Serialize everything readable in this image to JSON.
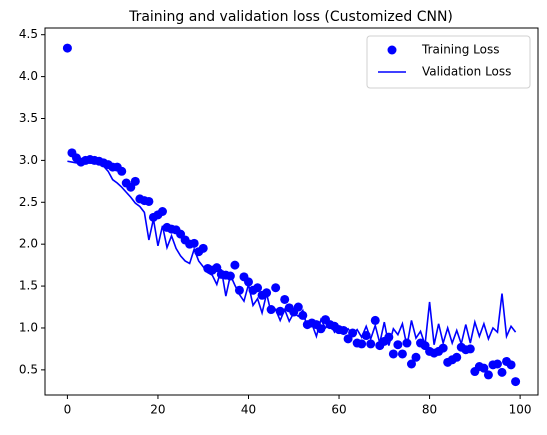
{
  "chart_data": {
    "type": "line",
    "title": "Training and validation loss (Customized CNN)",
    "x": [
      0,
      1,
      2,
      3,
      4,
      5,
      6,
      7,
      8,
      9,
      10,
      11,
      12,
      13,
      14,
      15,
      16,
      17,
      18,
      19,
      20,
      21,
      22,
      23,
      24,
      25,
      26,
      27,
      28,
      29,
      30,
      31,
      32,
      33,
      34,
      35,
      36,
      37,
      38,
      39,
      40,
      41,
      42,
      43,
      44,
      45,
      46,
      47,
      48,
      49,
      50,
      51,
      52,
      53,
      54,
      55,
      56,
      57,
      58,
      59,
      60,
      61,
      62,
      63,
      64,
      65,
      66,
      67,
      68,
      69,
      70,
      71,
      72,
      73,
      74,
      75,
      76,
      77,
      78,
      79,
      80,
      81,
      82,
      83,
      84,
      85,
      86,
      87,
      88,
      89,
      90,
      91,
      92,
      93,
      94,
      95,
      96,
      97,
      98,
      99
    ],
    "series": [
      {
        "name": "Training Loss",
        "color": "#0000ff",
        "style": "marker",
        "values": [
          4.34,
          3.09,
          3.03,
          2.98,
          3.0,
          3.01,
          3.0,
          2.99,
          2.97,
          2.95,
          2.92,
          2.92,
          2.87,
          2.73,
          2.68,
          2.75,
          2.54,
          2.52,
          2.51,
          2.32,
          2.35,
          2.39,
          2.2,
          2.18,
          2.17,
          2.12,
          2.05,
          2.0,
          2.01,
          1.91,
          1.95,
          1.71,
          1.69,
          1.72,
          1.64,
          1.63,
          1.62,
          1.75,
          1.45,
          1.61,
          1.55,
          1.45,
          1.48,
          1.39,
          1.42,
          1.22,
          1.48,
          1.2,
          1.34,
          1.24,
          1.19,
          1.25,
          1.15,
          1.04,
          1.06,
          1.04,
          0.99,
          1.1,
          1.04,
          1.02,
          0.98,
          0.97,
          0.87,
          0.94,
          0.82,
          0.81,
          0.91,
          0.81,
          1.09,
          0.79,
          0.84,
          0.89,
          0.69,
          0.8,
          0.69,
          0.82,
          0.57,
          0.65,
          0.82,
          0.79,
          0.72,
          0.7,
          0.72,
          0.76,
          0.59,
          0.62,
          0.65,
          0.77,
          0.74,
          0.75,
          0.48,
          0.54,
          0.52,
          0.44,
          0.56,
          0.57,
          0.47,
          0.6,
          0.56,
          0.36
        ]
      },
      {
        "name": "Validation Loss",
        "color": "#0000ff",
        "style": "line",
        "values": [
          2.99,
          2.98,
          2.97,
          3.0,
          2.98,
          2.97,
          2.96,
          2.96,
          2.93,
          2.87,
          2.77,
          2.73,
          2.68,
          2.62,
          2.56,
          2.49,
          2.45,
          2.38,
          2.05,
          2.3,
          1.98,
          2.22,
          1.96,
          2.1,
          1.95,
          1.86,
          1.8,
          1.77,
          1.94,
          1.8,
          1.73,
          1.66,
          1.63,
          1.52,
          1.7,
          1.38,
          1.63,
          1.51,
          1.4,
          1.32,
          1.52,
          1.27,
          1.35,
          1.18,
          1.41,
          1.18,
          1.22,
          1.09,
          1.22,
          1.08,
          1.18,
          1.14,
          1.21,
          1.0,
          1.05,
          0.9,
          1.1,
          1.0,
          1.06,
          0.95,
          1.02,
          0.93,
          0.99,
          0.92,
          0.98,
          0.89,
          1.02,
          0.87,
          1.03,
          0.82,
          1.07,
          0.79,
          0.99,
          0.92,
          1.05,
          0.78,
          1.09,
          0.88,
          0.96,
          0.8,
          1.31,
          0.8,
          1.05,
          0.82,
          1.0,
          0.82,
          0.97,
          0.81,
          1.04,
          0.82,
          1.07,
          0.9,
          1.05,
          0.87,
          1.0,
          0.95,
          1.41,
          0.9,
          1.02,
          0.95
        ]
      }
    ],
    "xlim": [
      -4.95,
      103.95
    ],
    "ylim": [
      0.2,
      4.58
    ],
    "xticks": [
      0,
      20,
      40,
      60,
      80,
      100
    ],
    "yticks": [
      0.5,
      {
        "value": 1,
        "label": "1.0"
      },
      1.5,
      {
        "value": 2,
        "label": "2.0"
      },
      2.5,
      {
        "value": 3,
        "label": "3.0"
      },
      3.5,
      {
        "value": 4,
        "label": "4.0"
      },
      4.5
    ],
    "grid": false,
    "legend": "upper right"
  }
}
